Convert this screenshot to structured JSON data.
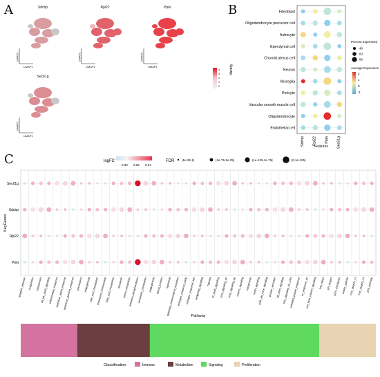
{
  "panel_letters": {
    "a": "A",
    "b": "B",
    "c": "C"
  },
  "panel_a": {
    "genes": [
      "Sdcbp",
      "Rpl22",
      "Ppia",
      "Sec61g"
    ],
    "axis_x": "UMAP1",
    "axis_y": "UMAP2",
    "scale_ticks": [
      "4",
      "3",
      "2",
      "1",
      "0"
    ]
  },
  "panel_b": {
    "y_title": "Identity",
    "x_title": "Features",
    "features": [
      "Sdcbp",
      "Rpl22",
      "Ppia",
      "Sec61g"
    ],
    "cell_types": [
      "Fibroblast",
      "Oligodendrocyte precursor cell",
      "Astrocyte",
      "Ependymal cell",
      "Choroid plexus cell",
      "Neuron",
      "Microglia",
      "Pericyte",
      "Vascular smooth muscle cell",
      "Oligodendrocyte",
      "Endothelial cell"
    ],
    "legend_pct_title": "Percent Expressed",
    "legend_pct_values": [
      "40",
      "60",
      "80"
    ],
    "legend_expr_title": "Average Expression",
    "legend_expr_ticks": [
      "2",
      "1",
      "0",
      "-1"
    ]
  },
  "panel_c": {
    "logfc_title": "logFC",
    "logfc_ticks": [
      "0.00",
      "0.02",
      "0.04"
    ],
    "fdr_title": "FDR",
    "fdr_levels": [
      "(1e-25,1]",
      "(1e-75,1e-25]",
      "(1e-125,1e-75]",
      "[0,1e-125]"
    ],
    "y_title": "KeyGenes",
    "x_title": "Pathway",
    "genes": [
      "Sec61g",
      "Sdcbp",
      "Rpl22",
      "Ppia"
    ],
    "pathways": [
      "allograft_rejection",
      "coagulation",
      "complement",
      "il6_jak_stat3_signaling",
      "inflammatory_response",
      "interferon_alpha_response",
      "interferon_gamma_response",
      "peroxisome",
      "adipogenesis",
      "bile_acid_metabolism",
      "cholesterol_homeostasis",
      "fatty_acid_metabolism",
      "glycolysis",
      "heme_metabolism",
      "oxidative_phosphorylation",
      "xenobiotic_metabolism",
      "angiogenesis",
      "apical_junction",
      "apoptosis",
      "epithelial_mesenchymal_transition",
      "estrogen_response_early",
      "estrogen_response_late",
      "hedgehog_signaling",
      "hypoxia",
      "il2_stat5_signaling",
      "kras_signaling_dn",
      "kras_signaling_up",
      "mtorc1_signaling",
      "myogenesis",
      "notch_signaling",
      "pi3k_akt_mtor_signaling",
      "protein_secretion",
      "tgf_beta_signaling",
      "tnfa_signaling_via_nfkb",
      "unfolded_protein_response",
      "uv_response_dn",
      "wnt_beta_catenin_signaling",
      "dna_repair",
      "e2f_targets",
      "g2m_checkpoint",
      "mitotic_spindle",
      "myc_targets_v1",
      "myc_targets_v2",
      "p53_pathway"
    ],
    "classification_title": "Classification",
    "classes": [
      {
        "name": "Immune",
        "color": "#d4739f",
        "count": 7
      },
      {
        "name": "Metabolism",
        "color": "#6b3f3f",
        "count": 9
      },
      {
        "name": "Signaling",
        "color": "#5fd95f",
        "count": 21
      },
      {
        "name": "Proliferation",
        "color": "#e8d3b2",
        "count": 7
      }
    ]
  }
}
